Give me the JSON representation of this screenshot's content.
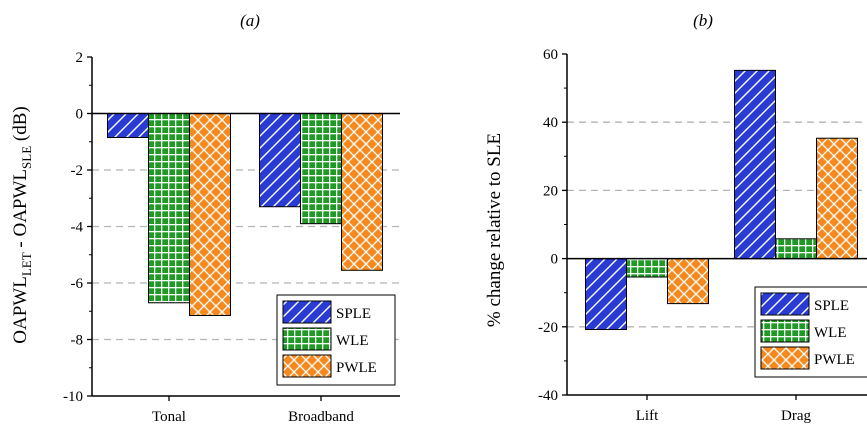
{
  "chart_data": [
    {
      "type": "bar",
      "title": "(a)",
      "xlabel": "",
      "ylabel": {
        "base1": "OAPWL",
        "sub1": "LET",
        "mid": " - OAPWL",
        "sub2": "SLE",
        "tail": " (dB)"
      },
      "categories": [
        "Tonal",
        "Broadband"
      ],
      "series": [
        {
          "name": "SPLE",
          "values": [
            -0.85,
            -3.3
          ]
        },
        {
          "name": "WLE",
          "values": [
            -6.7,
            -3.9
          ]
        },
        {
          "name": "PWLE",
          "values": [
            -7.15,
            -5.55
          ]
        }
      ],
      "ylim": [
        -10,
        2
      ],
      "yticks": [
        2,
        0,
        -2,
        -4,
        -6,
        -8,
        -10
      ],
      "grid_y": [
        -2,
        -4,
        -6,
        -8
      ],
      "grid": "dashed horizontal",
      "legend_position": "bottom-right"
    },
    {
      "type": "bar",
      "title": "(b)",
      "xlabel": "",
      "ylabel": "% change relative to SLE",
      "categories": [
        "Lift",
        "Drag"
      ],
      "series": [
        {
          "name": "SPLE",
          "values": [
            -20.8,
            55.2
          ]
        },
        {
          "name": "WLE",
          "values": [
            -5.4,
            5.8
          ]
        },
        {
          "name": "PWLE",
          "values": [
            -13.2,
            35.3
          ]
        }
      ],
      "ylim": [
        -40,
        60
      ],
      "yticks": [
        60,
        40,
        20,
        0,
        -20,
        -40
      ],
      "grid_y": [
        40,
        20,
        -20
      ],
      "grid": "dashed horizontal",
      "legend_position": "bottom-right"
    }
  ],
  "legend": [
    {
      "name": "SPLE",
      "color": "#2a3bd4",
      "pattern": "diagonal"
    },
    {
      "name": "WLE",
      "color": "#1f9a25",
      "pattern": "grid"
    },
    {
      "name": "PWLE",
      "color": "#f5891d",
      "pattern": "weave"
    }
  ]
}
